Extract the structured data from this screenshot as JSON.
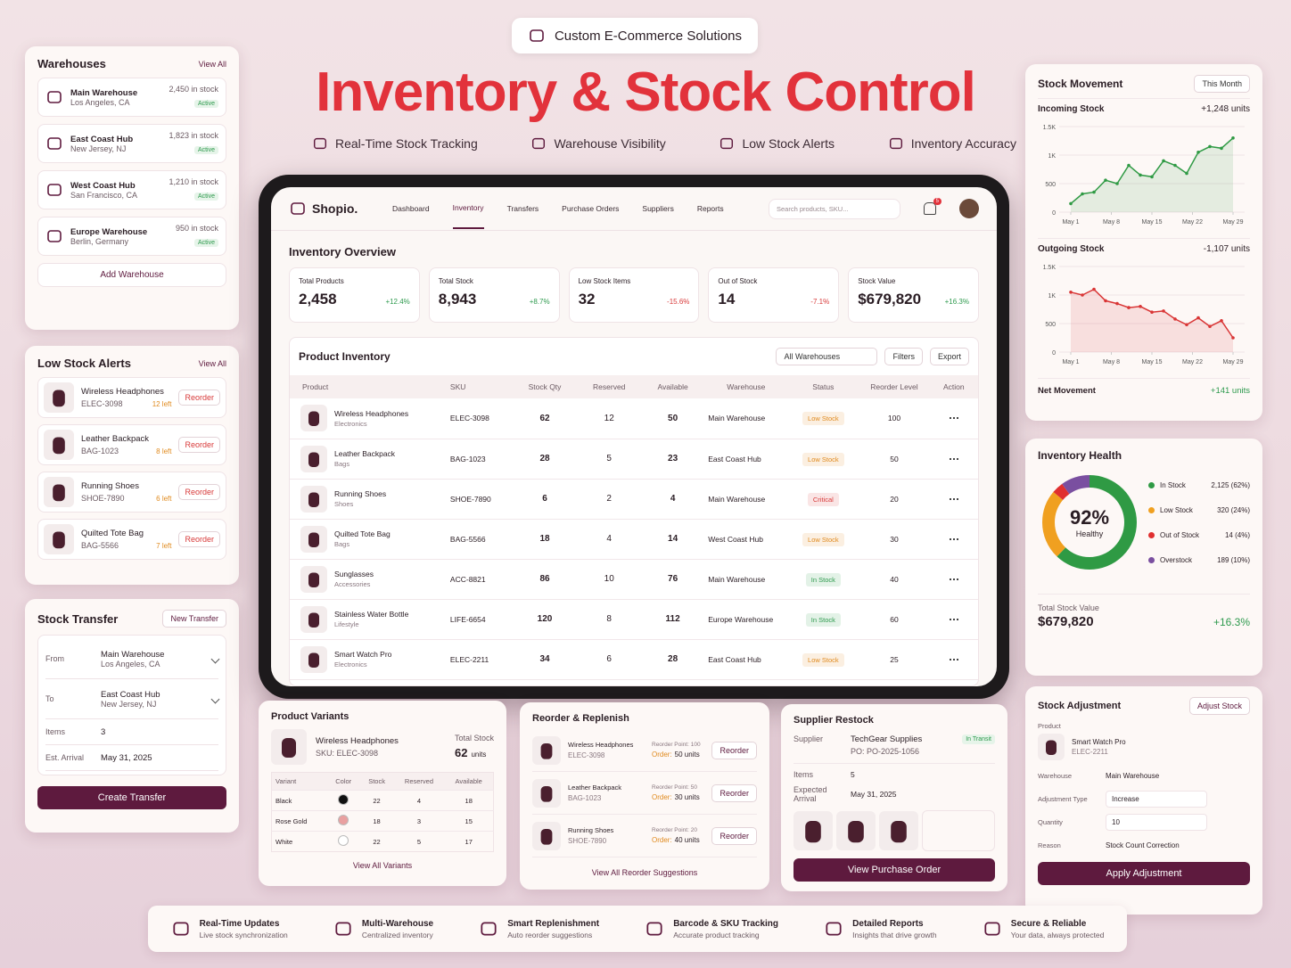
{
  "header": {
    "badge": "Custom E-Commerce Solutions",
    "title": "Inventory & Stock Control",
    "features": [
      "Real-Time Stock Tracking",
      "Warehouse Visibility",
      "Low Stock Alerts",
      "Inventory Accuracy"
    ]
  },
  "warehouses": {
    "title": "Warehouses",
    "view_all": "View All",
    "items": [
      {
        "name": "Main Warehouse",
        "location": "Los Angeles, CA",
        "stock": "2,450 in stock",
        "status": "Active"
      },
      {
        "name": "East Coast Hub",
        "location": "New Jersey, NJ",
        "stock": "1,823 in stock",
        "status": "Active"
      },
      {
        "name": "West Coast Hub",
        "location": "San Francisco, CA",
        "stock": "1,210 in stock",
        "status": "Active"
      },
      {
        "name": "Europe Warehouse",
        "location": "Berlin, Germany",
        "stock": "950 in stock",
        "status": "Active"
      }
    ],
    "add": "Add Warehouse"
  },
  "low_stock": {
    "title": "Low Stock Alerts",
    "view_all": "View All",
    "items": [
      {
        "name": "Wireless Headphones",
        "sku": "ELEC-3098",
        "left": "12 left",
        "action": "Reorder"
      },
      {
        "name": "Leather Backpack",
        "sku": "BAG-1023",
        "left": "8 left",
        "action": "Reorder"
      },
      {
        "name": "Running Shoes",
        "sku": "SHOE-7890",
        "left": "6 left",
        "action": "Reorder"
      },
      {
        "name": "Quilted Tote Bag",
        "sku": "BAG-5566",
        "left": "7 left",
        "action": "Reorder"
      }
    ]
  },
  "stock_transfer": {
    "title": "Stock Transfer",
    "new": "New Transfer",
    "from_label": "From",
    "from_name": "Main Warehouse",
    "from_location": "Los Angeles, CA",
    "to_label": "To",
    "to_name": "East Coast Hub",
    "to_location": "New Jersey, NJ",
    "items_label": "Items",
    "items": "3",
    "arrival_label": "Est. Arrival",
    "arrival": "May 31, 2025",
    "button": "Create Transfer"
  },
  "app": {
    "brand": "Shopio.",
    "nav": [
      "Dashboard",
      "Inventory",
      "Transfers",
      "Purchase Orders",
      "Suppliers",
      "Reports"
    ],
    "search": "Search products, SKU...",
    "notifications": "5",
    "overview_title": "Inventory Overview",
    "kpis": [
      {
        "label": "Total Products",
        "value": "2,458",
        "change": "+12.4%"
      },
      {
        "label": "Total Stock",
        "value": "8,943",
        "change": "+8.7%"
      },
      {
        "label": "Low Stock Items",
        "value": "32",
        "change": "-15.6%"
      },
      {
        "label": "Out of Stock",
        "value": "14",
        "change": "-7.1%"
      },
      {
        "label": "Stock Value",
        "value": "$679,820",
        "change": "+16.3%"
      }
    ],
    "inventory_title": "Product Inventory",
    "filters": [
      "All Warehouses",
      "Filters",
      "Export"
    ],
    "columns": [
      "Product",
      "SKU",
      "Stock Qty",
      "Reserved",
      "Available",
      "Warehouse",
      "Status",
      "Reorder Level",
      "Action"
    ],
    "rows": [
      {
        "name": "Wireless Headphones",
        "category": "Electronics",
        "sku": "ELEC-3098",
        "qty": 62,
        "reserved": 12,
        "available": 50,
        "warehouse": "Main Warehouse",
        "status": "Low Stock",
        "status_color": "#e08a1e",
        "reorder_level": 100
      },
      {
        "name": "Leather Backpack",
        "category": "Bags",
        "sku": "BAG-1023",
        "qty": 28,
        "reserved": 5,
        "available": 23,
        "warehouse": "East Coast Hub",
        "status": "Low Stock",
        "status_color": "#e08a1e",
        "reorder_level": 50
      },
      {
        "name": "Running Shoes",
        "category": "Shoes",
        "sku": "SHOE-7890",
        "qty": 6,
        "reserved": 2,
        "available": 4,
        "warehouse": "Main Warehouse",
        "status": "Critical",
        "status_color": "#d83a3a",
        "reorder_level": 20
      },
      {
        "name": "Quilted Tote Bag",
        "category": "Bags",
        "sku": "BAG-5566",
        "qty": 18,
        "reserved": 4,
        "available": 14,
        "warehouse": "West Coast Hub",
        "status": "Low Stock",
        "status_color": "#e08a1e",
        "reorder_level": 30
      },
      {
        "name": "Sunglasses",
        "category": "Accessories",
        "sku": "ACC-8821",
        "qty": 86,
        "reserved": 10,
        "available": 76,
        "warehouse": "Main Warehouse",
        "status": "In Stock",
        "status_color": "#2e9a4e",
        "reorder_level": 40
      },
      {
        "name": "Stainless Water Bottle",
        "category": "Lifestyle",
        "sku": "LIFE-6654",
        "qty": 120,
        "reserved": 8,
        "available": 112,
        "warehouse": "Europe Warehouse",
        "status": "In Stock",
        "status_color": "#2e9a4e",
        "reorder_level": 60
      },
      {
        "name": "Smart Watch Pro",
        "category": "Electronics",
        "sku": "ELEC-2211",
        "qty": 34,
        "reserved": 6,
        "available": 28,
        "warehouse": "East Coast Hub",
        "status": "Low Stock",
        "status_color": "#e08a1e",
        "reorder_level": 25
      }
    ]
  },
  "product_variants": {
    "title": "Product Variants",
    "product": "Wireless Headphones",
    "sku": "SKU: ELEC-3098",
    "total_label": "Total Stock",
    "total": 62,
    "unit": "units",
    "columns": [
      "Variant",
      "Color",
      "Stock",
      "Reserved",
      "Available"
    ],
    "rows": [
      {
        "variant": "Black",
        "color": "#111111",
        "stock": 22,
        "reserved": 4,
        "available": 18
      },
      {
        "variant": "Rose Gold",
        "color": "#e9a0a0",
        "stock": 18,
        "reserved": 3,
        "available": 15
      },
      {
        "variant": "White",
        "color": "#ffffff",
        "stock": 22,
        "reserved": 5,
        "available": 17
      }
    ],
    "link": "View All Variants"
  },
  "reorder": {
    "title": "Reorder & Replenish",
    "items": [
      {
        "name": "Wireless Headphones",
        "sku": "ELEC-3098",
        "point": "Reorder Point: 100",
        "order_label": "Order:",
        "order": "50 units",
        "action": "Reorder"
      },
      {
        "name": "Leather Backpack",
        "sku": "BAG-1023",
        "point": "Reorder Point: 50",
        "order_label": "Order:",
        "order": "30 units",
        "action": "Reorder"
      },
      {
        "name": "Running Shoes",
        "sku": "SHOE-7890",
        "point": "Reorder Point: 20",
        "order_label": "Order:",
        "order": "40 units",
        "action": "Reorder"
      }
    ],
    "link": "View All Reorder Suggestions"
  },
  "supplier": {
    "title": "Supplier Restock",
    "supplier_label": "Supplier",
    "supplier": "TechGear Supplies",
    "po": "PO: PO-2025-1056",
    "status": "In Transit",
    "items_label": "Items",
    "items": "5",
    "arrival_label": "Expected Arrival",
    "arrival": "May 31, 2025",
    "button": "View Purchase Order"
  },
  "stock_movement": {
    "title": "Stock Movement",
    "period": "This Month",
    "x": [
      1,
      3,
      5,
      7,
      9,
      11,
      13,
      15,
      17,
      19,
      21,
      23,
      25,
      27,
      29
    ],
    "xlim": [
      -1,
      31
    ],
    "xticks": [
      {
        "value": 1,
        "label": "May 1"
      },
      {
        "value": 8,
        "label": "May 8"
      },
      {
        "value": 15,
        "label": "May 15"
      },
      {
        "value": 22,
        "label": "May 22"
      },
      {
        "value": 29,
        "label": "May 29"
      }
    ],
    "incoming": {
      "name": "Incoming Stock",
      "total": "+1,248 units",
      "color": "#2f9a44",
      "ylim": [
        0,
        1500
      ],
      "yticks": [
        0,
        500,
        {
          "value": 1000,
          "label": "1K"
        },
        {
          "value": 1500,
          "label": "1.5K"
        }
      ],
      "values": [
        150,
        320,
        350,
        560,
        500,
        820,
        650,
        620,
        900,
        820,
        680,
        1050,
        1150,
        1120,
        1300
      ]
    },
    "outgoing": {
      "name": "Outgoing Stock",
      "total": "-1,107 units",
      "color": "#d93535",
      "ylim": [
        0,
        1500
      ],
      "yticks": [
        0,
        500,
        {
          "value": 1000,
          "label": "1K"
        },
        {
          "value": 1500,
          "label": "1.5K"
        }
      ],
      "values": [
        1050,
        1000,
        1100,
        900,
        850,
        780,
        800,
        700,
        720,
        580,
        480,
        600,
        450,
        550,
        250
      ]
    },
    "net_label": "Net Movement",
    "net": "+141 units"
  },
  "inventory_health": {
    "title": "Inventory Health",
    "center": "92%",
    "center_label": "Healthy",
    "legend": [
      {
        "name": "In Stock",
        "share": 62,
        "label": "2,125 (62%)",
        "color": "#2f9a44"
      },
      {
        "name": "Low Stock",
        "share": 24,
        "label": "320 (24%)",
        "color": "#f0a020"
      },
      {
        "name": "Out of Stock",
        "share": 4,
        "label": "14 (4%)",
        "color": "#e02f2f"
      },
      {
        "name": "Overstock",
        "share": 10,
        "label": "189 (10%)",
        "color": "#7a4fa0"
      }
    ],
    "total_label": "Total Stock Value",
    "total": "$679,820",
    "change": "+16.3%"
  },
  "stock_adjustment": {
    "title": "Stock Adjustment",
    "button_top": "Adjust Stock",
    "product_label": "Product",
    "product": "Smart Watch Pro",
    "sku": "ELEC-2211",
    "warehouse_label": "Warehouse",
    "warehouse": "Main Warehouse",
    "type_label": "Adjustment Type",
    "type": "Increase",
    "qty_label": "Quantity",
    "qty": "10",
    "reason_label": "Reason",
    "reason": "Stock Count Correction",
    "button": "Apply Adjustment"
  },
  "footer": [
    {
      "title": "Real-Time Updates",
      "sub": "Live stock synchronization"
    },
    {
      "title": "Multi-Warehouse",
      "sub": "Centralized inventory"
    },
    {
      "title": "Smart Replenishment",
      "sub": "Auto reorder suggestions"
    },
    {
      "title": "Barcode & SKU Tracking",
      "sub": "Accurate product tracking"
    },
    {
      "title": "Detailed Reports",
      "sub": "Insights that drive growth"
    },
    {
      "title": "Secure & Reliable",
      "sub": "Your data, always protected"
    }
  ]
}
